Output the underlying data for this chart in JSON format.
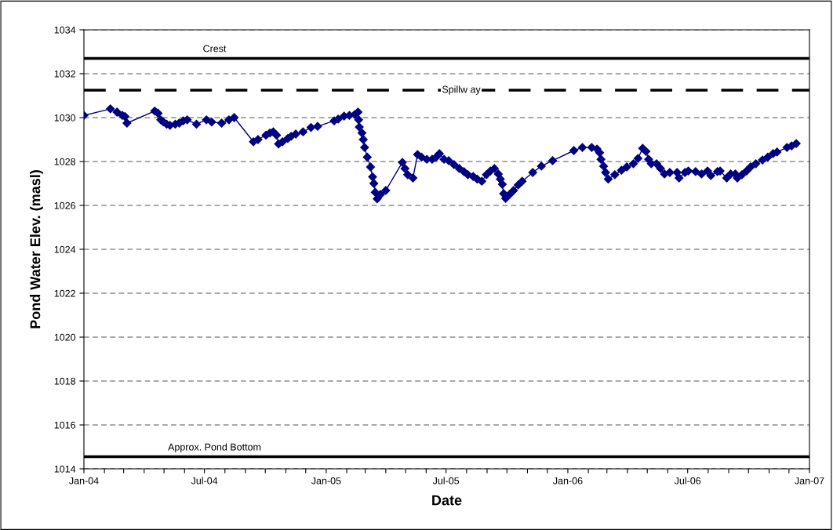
{
  "chart_data": {
    "type": "line",
    "xlabel": "Date",
    "ylabel": "Pond Water Elev. (masl)",
    "x": [
      "2004-01-01",
      "2004-02-10",
      "2004-02-20",
      "2004-02-28",
      "2004-03-03",
      "2004-03-06",
      "2004-04-17",
      "2004-04-22",
      "2004-04-26",
      "2004-04-30",
      "2004-05-05",
      "2004-05-10",
      "2004-05-18",
      "2004-05-24",
      "2004-05-30",
      "2004-06-05",
      "2004-06-19",
      "2004-07-04",
      "2004-07-12",
      "2004-07-27",
      "2004-08-07",
      "2004-08-15",
      "2004-09-13",
      "2004-09-20",
      "2004-10-02",
      "2004-10-08",
      "2004-10-13",
      "2004-10-18",
      "2004-10-21",
      "2004-10-27",
      "2004-11-04",
      "2004-11-09",
      "2004-11-16",
      "2004-11-27",
      "2004-12-09",
      "2004-12-19",
      "2005-01-13",
      "2005-01-19",
      "2005-01-28",
      "2005-02-05",
      "2005-02-13",
      "2005-02-18",
      "2005-02-19",
      "2005-02-20",
      "2005-02-24",
      "2005-02-26",
      "2005-02-28",
      "2005-03-04",
      "2005-03-09",
      "2005-03-12",
      "2005-03-14",
      "2005-03-16",
      "2005-03-19",
      "2005-03-24",
      "2005-04-01",
      "2005-04-26",
      "2005-04-30",
      "2005-05-04",
      "2005-05-12",
      "2005-05-19",
      "2005-05-25",
      "2005-06-02",
      "2005-06-10",
      "2005-06-16",
      "2005-06-21",
      "2005-06-28",
      "2005-07-05",
      "2005-07-13",
      "2005-07-21",
      "2005-07-28",
      "2005-08-03",
      "2005-08-11",
      "2005-08-17",
      "2005-08-24",
      "2005-08-31",
      "2005-09-06",
      "2005-09-12",
      "2005-09-18",
      "2005-09-21",
      "2005-09-24",
      "2005-09-26",
      "2005-09-29",
      "2005-10-05",
      "2005-10-11",
      "2005-10-18",
      "2005-10-24",
      "2005-11-09",
      "2005-11-22",
      "2005-12-09",
      "2006-01-10",
      "2006-01-23",
      "2006-02-06",
      "2006-02-14",
      "2006-02-18",
      "2006-02-20",
      "2006-02-24",
      "2006-02-27",
      "2006-03-03",
      "2006-03-13",
      "2006-03-23",
      "2006-03-31",
      "2006-04-10",
      "2006-04-17",
      "2006-04-24",
      "2006-04-29",
      "2006-05-03",
      "2006-05-07",
      "2006-05-15",
      "2006-05-21",
      "2006-05-27",
      "2006-06-04",
      "2006-06-15",
      "2006-06-18",
      "2006-06-27",
      "2006-07-02",
      "2006-07-13",
      "2006-07-22",
      "2006-07-31",
      "2006-08-05",
      "2006-08-15",
      "2006-08-19",
      "2006-08-29",
      "2006-09-04",
      "2006-09-11",
      "2006-09-14",
      "2006-09-21",
      "2006-09-28",
      "2006-10-04",
      "2006-10-12",
      "2006-10-22",
      "2006-10-30",
      "2006-11-07",
      "2006-11-13",
      "2006-11-28",
      "2006-12-05",
      "2006-12-12"
    ],
    "series": [
      {
        "color": "#000080",
        "values": [
          1030.1,
          1030.4,
          1030.25,
          1030.1,
          1030.05,
          1029.75,
          1030.3,
          1030.2,
          1029.9,
          1029.8,
          1029.7,
          1029.65,
          1029.7,
          1029.75,
          1029.85,
          1029.9,
          1029.7,
          1029.9,
          1029.8,
          1029.75,
          1029.9,
          1030.0,
          1028.9,
          1029.0,
          1029.2,
          1029.3,
          1029.35,
          1029.2,
          1028.8,
          1028.9,
          1029.05,
          1029.15,
          1029.25,
          1029.35,
          1029.55,
          1029.6,
          1029.85,
          1029.93,
          1030.07,
          1030.1,
          1030.14,
          1030.25,
          1029.9,
          1029.57,
          1029.3,
          1029.0,
          1028.64,
          1028.2,
          1027.75,
          1027.3,
          1027.0,
          1026.6,
          1026.3,
          1026.5,
          1026.68,
          1027.96,
          1027.68,
          1027.4,
          1027.25,
          1028.32,
          1028.2,
          1028.1,
          1028.1,
          1028.2,
          1028.36,
          1028.1,
          1028.04,
          1027.86,
          1027.68,
          1027.54,
          1027.4,
          1027.32,
          1027.2,
          1027.1,
          1027.4,
          1027.57,
          1027.68,
          1027.43,
          1027.2,
          1026.96,
          1026.54,
          1026.32,
          1026.5,
          1026.68,
          1026.93,
          1027.1,
          1027.5,
          1027.79,
          1028.04,
          1028.5,
          1028.64,
          1028.64,
          1028.57,
          1028.4,
          1028.1,
          1027.79,
          1027.5,
          1027.2,
          1027.4,
          1027.6,
          1027.75,
          1027.9,
          1028.14,
          1028.6,
          1028.46,
          1028.1,
          1027.9,
          1027.9,
          1027.68,
          1027.43,
          1027.5,
          1027.5,
          1027.25,
          1027.5,
          1027.57,
          1027.54,
          1027.43,
          1027.57,
          1027.36,
          1027.54,
          1027.57,
          1027.25,
          1027.43,
          1027.43,
          1027.25,
          1027.4,
          1027.57,
          1027.75,
          1027.9,
          1028.07,
          1028.2,
          1028.36,
          1028.43,
          1028.64,
          1028.71,
          1028.82
        ]
      }
    ],
    "marker": "diamond",
    "line_style": "solid",
    "xlim": [
      "2004-01-01",
      "2007-01-01"
    ],
    "xticks": [
      {
        "value": "2004-01-01",
        "label": "Jan-04"
      },
      {
        "value": "2004-02-01",
        "label": null
      },
      {
        "value": "2004-03-01",
        "label": null
      },
      {
        "value": "2004-04-01",
        "label": null
      },
      {
        "value": "2004-05-01",
        "label": null
      },
      {
        "value": "2004-06-01",
        "label": null
      },
      {
        "value": "2004-07-01",
        "label": "Jul-04"
      },
      {
        "value": "2004-08-01",
        "label": null
      },
      {
        "value": "2004-09-01",
        "label": null
      },
      {
        "value": "2004-10-01",
        "label": null
      },
      {
        "value": "2004-11-01",
        "label": null
      },
      {
        "value": "2004-12-01",
        "label": null
      },
      {
        "value": "2005-01-01",
        "label": "Jan-05"
      },
      {
        "value": "2005-02-01",
        "label": null
      },
      {
        "value": "2005-03-01",
        "label": null
      },
      {
        "value": "2005-04-01",
        "label": null
      },
      {
        "value": "2005-05-01",
        "label": null
      },
      {
        "value": "2005-06-01",
        "label": null
      },
      {
        "value": "2005-07-01",
        "label": "Jul-05"
      },
      {
        "value": "2005-08-01",
        "label": null
      },
      {
        "value": "2005-09-01",
        "label": null
      },
      {
        "value": "2005-10-01",
        "label": null
      },
      {
        "value": "2005-11-01",
        "label": null
      },
      {
        "value": "2005-12-01",
        "label": null
      },
      {
        "value": "2006-01-01",
        "label": "Jan-06"
      },
      {
        "value": "2006-02-01",
        "label": null
      },
      {
        "value": "2006-03-01",
        "label": null
      },
      {
        "value": "2006-04-01",
        "label": null
      },
      {
        "value": "2006-05-01",
        "label": null
      },
      {
        "value": "2006-06-01",
        "label": null
      },
      {
        "value": "2006-07-01",
        "label": "Jul-06"
      },
      {
        "value": "2006-08-01",
        "label": null
      },
      {
        "value": "2006-09-01",
        "label": null
      },
      {
        "value": "2006-10-01",
        "label": null
      },
      {
        "value": "2006-11-01",
        "label": null
      },
      {
        "value": "2006-12-01",
        "label": null
      },
      {
        "value": "2007-01-01",
        "label": "Jan-07"
      }
    ],
    "ylim": [
      1014,
      1034
    ],
    "yticks": [
      1014,
      1016,
      1018,
      1020,
      1022,
      1024,
      1026,
      1028,
      1030,
      1032,
      1034
    ],
    "grid": "y",
    "legend": false,
    "ref_lines": [
      {
        "axis": "y",
        "value": 1032.7,
        "label": "Crest",
        "color": "#000000",
        "line_style": "solid"
      },
      {
        "axis": "y",
        "value": 1031.25,
        "label": "Spillw ay",
        "color": "#000000",
        "line_style": "dashed"
      },
      {
        "axis": "y",
        "value": 1014.55,
        "label": "Approx. Pond Bottom",
        "color": "#000000",
        "line_style": "solid"
      }
    ]
  }
}
